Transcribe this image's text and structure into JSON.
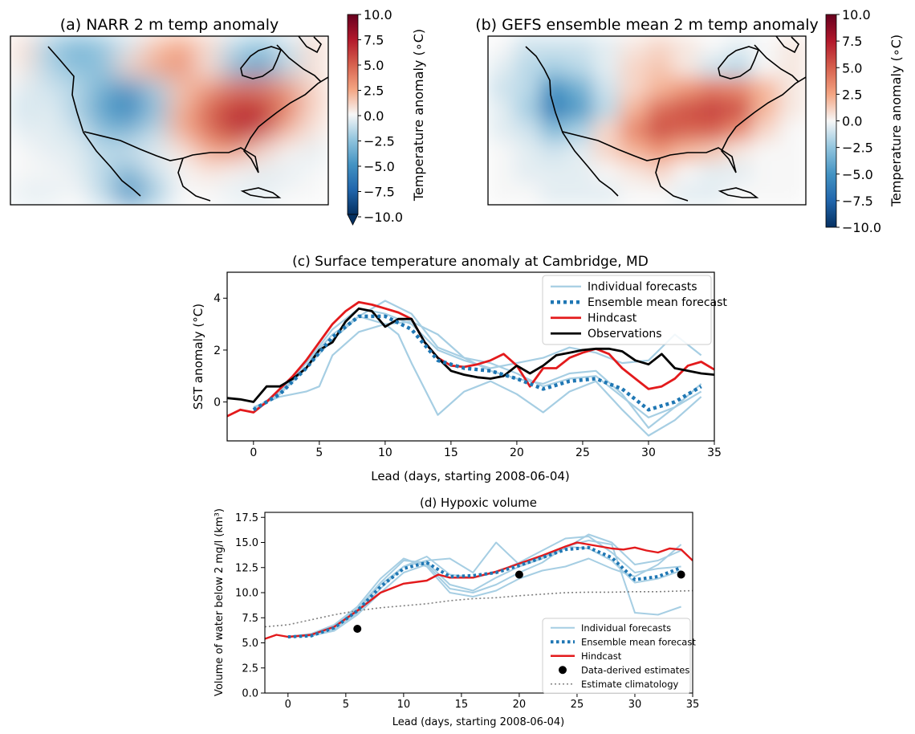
{
  "chart_data": [
    {
      "type": "heatmap",
      "title": "(a) NARR 2 m temp anomaly",
      "colorbar": {
        "label": "Temperature anomaly (∘C)",
        "ticks": [
          "10.0",
          "7.5",
          "5.0",
          "2.5",
          "0.0",
          "−2.5",
          "−5.0",
          "−7.5",
          "−10.0"
        ],
        "range": [
          -10,
          10
        ],
        "extend": "min",
        "colormap": "RdBu_r"
      },
      "cells": [
        [
          0.8,
          -2.2,
          -3.5,
          -2.8,
          -1.0,
          1.5,
          2.5,
          1.0,
          -1.5,
          -2.5,
          -1.0,
          1.0
        ],
        [
          0.5,
          -1.8,
          -3.0,
          -2.5,
          1.0,
          2.5,
          3.5,
          0.5,
          -3.0,
          -4.5,
          -1.5,
          0.5
        ],
        [
          -0.5,
          -1.0,
          -1.5,
          -3.5,
          -5.0,
          -2.0,
          1.5,
          3.0,
          4.5,
          4.0,
          3.0,
          1.0
        ],
        [
          -1.0,
          -0.5,
          -2.0,
          -4.5,
          -6.0,
          -3.0,
          2.0,
          5.0,
          6.5,
          7.0,
          4.0,
          1.0
        ],
        [
          -0.5,
          -0.5,
          -1.0,
          -3.0,
          -3.5,
          -1.5,
          2.5,
          4.5,
          7.0,
          6.0,
          2.0,
          0.5
        ],
        [
          0.0,
          -0.5,
          -0.5,
          -1.5,
          -1.0,
          -0.5,
          0.5,
          2.5,
          3.0,
          1.0,
          0.0,
          -0.5
        ],
        [
          0.0,
          0.0,
          -0.5,
          -1.5,
          -3.5,
          -1.0,
          0.0,
          0.5,
          0.0,
          -0.5,
          -0.5,
          0.0
        ],
        [
          -0.5,
          -0.5,
          0.0,
          -1.5,
          -5.5,
          -2.5,
          0.0,
          0.0,
          -0.5,
          -0.5,
          0.0,
          0.0
        ]
      ]
    },
    {
      "type": "heatmap",
      "title": "(b) GEFS ensemble mean 2 m temp anomaly",
      "colorbar": {
        "label": "Temperature anomaly (∘C)",
        "ticks": [
          "10.0",
          "7.5",
          "5.0",
          "2.5",
          "0.0",
          "−2.5",
          "−5.0",
          "−7.5",
          "−10.0"
        ],
        "range": [
          -10,
          10
        ],
        "extend": "neither",
        "colormap": "RdBu_r"
      },
      "cells": [
        [
          0.0,
          -1.0,
          -1.0,
          -1.0,
          -0.5,
          0.5,
          1.0,
          0.5,
          0.0,
          -0.5,
          0.0,
          0.5
        ],
        [
          -0.5,
          -1.5,
          -2.0,
          -1.5,
          -0.5,
          1.0,
          1.5,
          0.5,
          -1.0,
          -1.5,
          0.0,
          0.5
        ],
        [
          -1.0,
          -1.5,
          -5.0,
          -3.5,
          -1.0,
          1.0,
          2.0,
          3.0,
          4.0,
          3.5,
          2.0,
          0.5
        ],
        [
          -0.5,
          -2.0,
          -6.0,
          -4.5,
          -1.5,
          2.0,
          4.5,
          5.5,
          6.0,
          5.5,
          2.0,
          0.5
        ],
        [
          -0.5,
          -1.0,
          -3.0,
          -2.0,
          1.0,
          3.5,
          5.5,
          5.0,
          5.0,
          3.5,
          1.0,
          0.0
        ],
        [
          0.0,
          -0.5,
          -1.0,
          -0.5,
          1.0,
          2.0,
          3.0,
          2.0,
          1.5,
          0.5,
          0.0,
          0.0
        ],
        [
          0.0,
          -0.5,
          -0.5,
          -0.5,
          0.0,
          0.5,
          1.0,
          0.0,
          -0.5,
          -0.5,
          0.0,
          0.0
        ],
        [
          0.0,
          0.0,
          -0.5,
          -0.5,
          -0.5,
          0.0,
          0.0,
          -0.5,
          -0.5,
          0.0,
          0.0,
          0.0
        ]
      ]
    },
    {
      "type": "line",
      "title": "(c) Surface temperature anomaly at Cambridge, MD",
      "xlabel": "Lead (days, starting 2008-06-04)",
      "ylabel": "SST anomaly (°C)",
      "xlim": [
        -2,
        35
      ],
      "ylim": [
        -1.5,
        5
      ],
      "xticks": [
        0,
        5,
        10,
        15,
        20,
        25,
        30,
        35
      ],
      "yticks": [
        0,
        2,
        4
      ],
      "legend": "top-right",
      "series": [
        {
          "name": "Individual forecasts",
          "color": "#a6cee3",
          "style": "solid",
          "x": [
            0,
            2,
            4,
            6,
            8,
            10,
            12,
            14,
            16,
            18,
            20,
            22,
            24,
            26,
            28,
            30,
            32,
            34
          ],
          "y": [
            -0.3,
            0.3,
            1.5,
            2.8,
            3.6,
            3.4,
            3.0,
            2.0,
            1.6,
            1.3,
            1.5,
            1.7,
            2.1,
            1.9,
            1.5,
            1.6,
            2.6,
            1.8
          ]
        },
        {
          "name": "",
          "color": "#a6cee3",
          "style": "solid",
          "x": [
            0,
            2,
            4,
            6,
            8,
            10,
            11,
            12,
            14,
            16,
            18,
            20,
            22,
            24,
            26,
            28,
            30,
            32,
            34
          ],
          "y": [
            -0.3,
            0.4,
            1.5,
            2.6,
            3.3,
            3.0,
            2.6,
            1.5,
            -0.5,
            0.4,
            0.8,
            0.3,
            -0.4,
            0.4,
            0.8,
            -0.3,
            -1.3,
            -0.7,
            0.2
          ]
        },
        {
          "name": "",
          "color": "#a6cee3",
          "style": "solid",
          "x": [
            0,
            2,
            4,
            5,
            6,
            8,
            10,
            12,
            14,
            16,
            18,
            20,
            22,
            24,
            26,
            28,
            30,
            32,
            34
          ],
          "y": [
            -0.2,
            0.2,
            0.4,
            0.6,
            1.8,
            2.7,
            3.0,
            3.1,
            2.6,
            1.7,
            1.2,
            0.9,
            0.7,
            1.1,
            1.2,
            0.3,
            -1.0,
            -0.2,
            0.7
          ]
        },
        {
          "name": "",
          "color": "#a6cee3",
          "style": "solid",
          "x": [
            0,
            2,
            4,
            6,
            8,
            10,
            12,
            14,
            16,
            18,
            20,
            22,
            24,
            26,
            28,
            30,
            32,
            34
          ],
          "y": [
            -0.3,
            0.3,
            1.3,
            2.4,
            3.3,
            3.9,
            3.4,
            2.1,
            1.7,
            1.5,
            1.1,
            0.6,
            0.9,
            1.0,
            0.2,
            -0.6,
            -0.2,
            0.4
          ]
        },
        {
          "name": "Ensemble mean forecast",
          "color": "#1f77b4",
          "style": "dotted",
          "x": [
            0,
            2,
            4,
            6,
            8,
            10,
            12,
            14,
            16,
            18,
            20,
            22,
            24,
            26,
            28,
            30,
            32,
            34
          ],
          "y": [
            -0.3,
            0.3,
            1.3,
            2.5,
            3.3,
            3.3,
            2.8,
            1.6,
            1.3,
            1.2,
            0.9,
            0.5,
            0.8,
            0.9,
            0.5,
            -0.3,
            0.0,
            0.6
          ]
        },
        {
          "name": "Hindcast",
          "color": "#e31a1c",
          "style": "solid",
          "x": [
            -2,
            -1,
            0,
            1,
            2,
            3,
            4,
            5,
            6,
            7,
            8,
            9,
            10,
            11,
            12,
            13,
            14,
            15,
            16,
            17,
            18,
            19,
            20,
            21,
            22,
            23,
            24,
            25,
            26,
            27,
            28,
            29,
            30,
            31,
            32,
            33,
            34,
            35
          ],
          "y": [
            -0.55,
            -0.3,
            -0.4,
            0.0,
            0.5,
            1.0,
            1.6,
            2.3,
            3.0,
            3.5,
            3.85,
            3.75,
            3.6,
            3.45,
            3.2,
            2.3,
            1.7,
            1.4,
            1.35,
            1.45,
            1.6,
            1.85,
            1.4,
            0.6,
            1.3,
            1.3,
            1.7,
            1.9,
            2.05,
            1.85,
            1.3,
            0.9,
            0.5,
            0.6,
            0.9,
            1.4,
            1.55,
            1.25
          ]
        },
        {
          "name": "Observations",
          "color": "#000000",
          "style": "solid",
          "x": [
            -2,
            -1,
            0,
            1,
            2,
            3,
            4,
            5,
            6,
            7,
            8,
            9,
            10,
            11,
            12,
            13,
            14,
            15,
            16,
            17,
            18,
            19,
            20,
            21,
            22,
            23,
            24,
            25,
            26,
            27,
            28,
            29,
            30,
            31,
            32,
            33,
            34,
            35
          ],
          "y": [
            0.15,
            0.1,
            0.0,
            0.6,
            0.6,
            0.9,
            1.3,
            2.0,
            2.3,
            3.1,
            3.6,
            3.5,
            2.9,
            3.2,
            3.2,
            2.3,
            1.7,
            1.2,
            1.05,
            0.95,
            0.9,
            1.0,
            1.4,
            1.1,
            1.4,
            1.8,
            1.9,
            2.0,
            2.05,
            2.05,
            1.95,
            1.6,
            1.45,
            1.85,
            1.3,
            1.2,
            1.1,
            1.05
          ]
        }
      ]
    },
    {
      "type": "line",
      "title": "(d) Hypoxic volume",
      "xlabel": "Lead (days, starting 2008-06-04)",
      "ylabel": "Volume of water below 2 mg/l (km³)",
      "xlim": [
        -2,
        35
      ],
      "ylim": [
        0,
        18
      ],
      "xticks": [
        0,
        5,
        10,
        15,
        20,
        25,
        30,
        35
      ],
      "yticks": [
        0.0,
        2.5,
        5.0,
        7.5,
        10.0,
        12.5,
        15.0,
        17.5
      ],
      "ytick_labels": [
        "0.0",
        "2.5",
        "5.0",
        "7.5",
        "10.0",
        "12.5",
        "15.0",
        "17.5"
      ],
      "legend": "bottom-right",
      "series": [
        {
          "name": "Individual forecasts",
          "color": "#a6cee3",
          "style": "solid",
          "x": [
            0,
            2,
            4,
            6,
            8,
            10,
            12,
            14,
            16,
            18,
            20,
            22,
            24,
            26,
            28,
            30,
            32,
            34
          ],
          "y": [
            5.6,
            5.7,
            6.4,
            8.0,
            10.4,
            12.6,
            13.6,
            11.8,
            11.5,
            12.0,
            13.0,
            14.2,
            15.4,
            15.6,
            14.0,
            12.0,
            12.4,
            12.6
          ]
        },
        {
          "name": "",
          "color": "#a6cee3",
          "style": "solid",
          "x": [
            0,
            2,
            4,
            6,
            8,
            10,
            12,
            14,
            16,
            18,
            20,
            22,
            24,
            26,
            28,
            30,
            32,
            34
          ],
          "y": [
            5.6,
            5.8,
            6.6,
            8.4,
            11.0,
            13.2,
            13.0,
            10.8,
            10.2,
            11.5,
            12.6,
            13.4,
            14.6,
            14.4,
            13.2,
            11.0,
            11.4,
            12.2
          ]
        },
        {
          "name": "",
          "color": "#a6cee3",
          "style": "solid",
          "x": [
            0,
            2,
            4,
            6,
            8,
            10,
            12,
            14,
            16,
            18,
            20,
            22,
            24,
            26,
            28,
            30,
            32,
            34
          ],
          "y": [
            5.6,
            5.7,
            6.2,
            7.8,
            10.0,
            12.0,
            12.8,
            10.4,
            10.0,
            10.8,
            12.0,
            13.0,
            14.6,
            15.2,
            14.8,
            8.0,
            7.8,
            8.6
          ]
        },
        {
          "name": "",
          "color": "#a6cee3",
          "style": "solid",
          "x": [
            0,
            2,
            4,
            6,
            8,
            10,
            12,
            14,
            16,
            18,
            20,
            22,
            24,
            26,
            28,
            30,
            32,
            34
          ],
          "y": [
            5.6,
            5.9,
            6.8,
            8.6,
            11.4,
            13.4,
            12.6,
            10.0,
            9.6,
            10.2,
            11.4,
            12.2,
            12.6,
            13.4,
            12.4,
            11.6,
            12.8,
            14.8
          ]
        },
        {
          "name": "",
          "color": "#a6cee3",
          "style": "solid",
          "x": [
            0,
            2,
            4,
            6,
            8,
            10,
            12,
            14,
            16,
            18,
            20,
            22,
            24,
            26,
            28,
            30,
            32,
            34
          ],
          "y": [
            5.6,
            5.7,
            6.4,
            8.2,
            10.8,
            12.6,
            13.2,
            13.4,
            12.0,
            15.0,
            12.8,
            13.6,
            14.4,
            15.8,
            15.0,
            12.8,
            13.2,
            14.2
          ]
        },
        {
          "name": "Ensemble mean forecast",
          "color": "#1f77b4",
          "style": "dotted",
          "x": [
            0,
            2,
            4,
            6,
            8,
            10,
            12,
            14,
            16,
            18,
            20,
            22,
            24,
            26,
            28,
            30,
            32,
            34
          ],
          "y": [
            5.6,
            5.7,
            6.5,
            8.2,
            10.6,
            12.4,
            13.0,
            11.6,
            11.7,
            12.0,
            12.7,
            13.5,
            14.3,
            14.5,
            13.5,
            11.3,
            11.6,
            12.5
          ]
        },
        {
          "name": "Hindcast",
          "color": "#e31a1c",
          "style": "solid",
          "x": [
            -2,
            -1,
            0,
            2,
            4,
            6,
            8,
            10,
            12,
            13,
            14,
            16,
            18,
            20,
            22,
            24,
            25,
            26,
            27,
            28,
            29,
            30,
            31,
            32,
            33,
            34,
            35
          ],
          "y": [
            5.4,
            5.8,
            5.6,
            5.8,
            6.6,
            8.2,
            10.0,
            10.9,
            11.2,
            11.8,
            11.5,
            11.5,
            12.1,
            12.9,
            13.7,
            14.6,
            15.0,
            14.8,
            14.6,
            14.4,
            14.3,
            14.5,
            14.2,
            14.0,
            14.4,
            14.3,
            13.2
          ]
        },
        {
          "name": "Data-derived estimates",
          "color": "#000000",
          "style": "marker",
          "x": [
            6,
            20,
            34
          ],
          "y": [
            6.4,
            11.8,
            11.8
          ]
        },
        {
          "name": "Estimate climatology",
          "color": "#808080",
          "style": "dotted-thin",
          "x": [
            -2,
            0,
            2,
            4,
            6,
            8,
            10,
            12,
            14,
            16,
            18,
            20,
            22,
            24,
            26,
            28,
            30,
            32,
            35
          ],
          "y": [
            6.6,
            6.8,
            7.3,
            7.8,
            8.2,
            8.5,
            8.7,
            8.9,
            9.2,
            9.4,
            9.5,
            9.7,
            9.85,
            10.0,
            10.05,
            10.05,
            10.1,
            10.1,
            10.2
          ]
        }
      ]
    }
  ]
}
